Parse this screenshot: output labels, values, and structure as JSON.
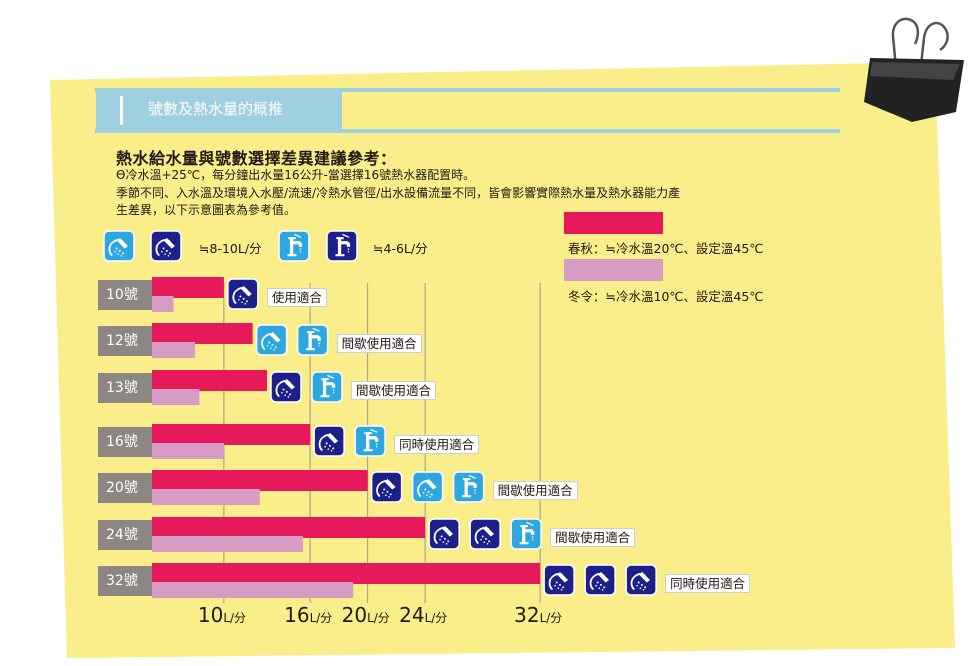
{
  "section_title": "號數及熱水量的概推",
  "heading": "熱水給水量與號數選擇差異建議參考：",
  "notes": [
    "Ɵ冷水溫+25℃，每分鐘出水量16公升-當選擇16號熱水器配置時。",
    "季節不同、入水溫及環境入水壓/流速/冷熱水管徑/出水設備流量不同，皆會影響實際熱水量及熱水器能力產",
    "生差異，以下示意圖表為參考值。"
  ],
  "fixtures": {
    "shower": {
      "icon": "shower-icon",
      "rate": "≒8-10L/分"
    },
    "faucet": {
      "icon": "faucet-icon",
      "rate": "≒4-6L/分"
    }
  },
  "colors": {
    "spring_autumn": "#e6195a",
    "winter": "#d79cc4",
    "paper": "#f9ee8a",
    "band": "#9fd0e2",
    "category_box": "#8c8783",
    "icon_light": "#2ea7e0",
    "icon_dark": "#1d2088"
  },
  "chart_data": {
    "type": "bar",
    "orientation": "horizontal",
    "unit": "L/分",
    "categories": [
      "10號",
      "12號",
      "13號",
      "16號",
      "20號",
      "24號",
      "32號"
    ],
    "series": [
      {
        "name": "春秋：≒冷水溫20℃、設定溫45℃",
        "values": [
          10,
          12,
          13,
          16,
          20,
          24,
          32
        ]
      },
      {
        "name": "冬令：≒冷水溫10℃、設定溫45℃",
        "values": [
          6.5,
          8,
          8.3,
          10,
          12.5,
          15.5,
          19
        ]
      }
    ],
    "x_ticks": [
      {
        "value": 10,
        "label": "10",
        "unit": "L/分"
      },
      {
        "value": 16,
        "label": "16",
        "unit": "L/分"
      },
      {
        "value": 20,
        "label": "20",
        "unit": "L/分"
      },
      {
        "value": 24,
        "label": "24",
        "unit": "L/分"
      },
      {
        "value": 32,
        "label": "32",
        "unit": "L/分"
      }
    ],
    "xlim": [
      5,
      32
    ],
    "grid": "vertical",
    "legend": "top-right",
    "annotations": [
      {
        "label": "使用適合",
        "icons": [
          "shower-icon"
        ]
      },
      {
        "label": "間歇使用適合",
        "icons": [
          "shower-icon",
          "faucet-icon"
        ]
      },
      {
        "label": "間歇使用適合",
        "icons": [
          "shower-icon",
          "faucet-icon"
        ]
      },
      {
        "label": "同時使用適合",
        "icons": [
          "shower-icon",
          "faucet-icon"
        ]
      },
      {
        "label": "間歇使用適合",
        "icons": [
          "shower-icon",
          "shower-icon",
          "faucet-icon"
        ]
      },
      {
        "label": "間歇使用適合",
        "icons": [
          "shower-icon",
          "shower-icon",
          "faucet-icon"
        ]
      },
      {
        "label": "同時使用適合",
        "icons": [
          "shower-icon",
          "shower-icon",
          "shower-icon"
        ]
      }
    ]
  }
}
